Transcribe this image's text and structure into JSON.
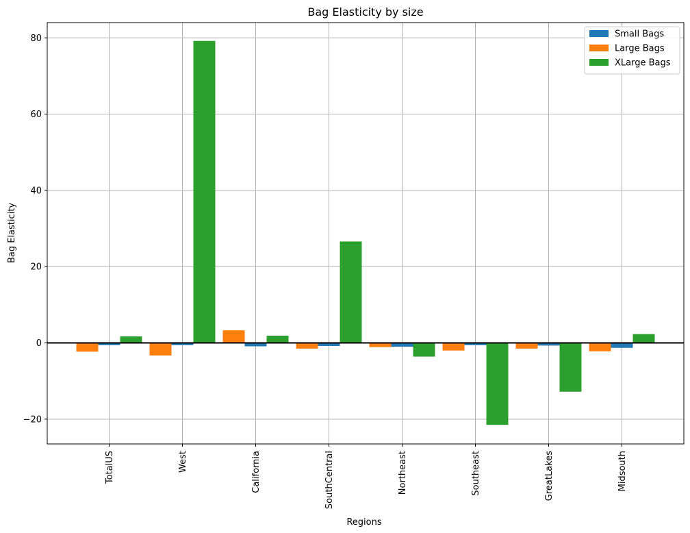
{
  "chart_data": {
    "type": "bar",
    "title": "Bag Elasticity by size",
    "xlabel": "Regions",
    "ylabel": "Bag Elasticity",
    "categories": [
      "TotalUS",
      "West",
      "California",
      "SouthCentral",
      "Northeast",
      "Southeast",
      "GreatLakes",
      "Midsouth"
    ],
    "series": [
      {
        "name": "Small Bags",
        "color": "#1f77b4",
        "values": [
          -0.6,
          -0.6,
          -0.9,
          -0.8,
          -1.0,
          -0.6,
          -0.7,
          -1.3
        ]
      },
      {
        "name": "Large Bags",
        "color": "#ff7f0e",
        "values": [
          -2.3,
          -3.3,
          3.3,
          -1.5,
          -1.1,
          -2.0,
          -1.5,
          -2.2
        ]
      },
      {
        "name": "XLarge Bags",
        "color": "#2ca02c",
        "values": [
          1.7,
          79.2,
          1.9,
          26.6,
          -3.6,
          -21.5,
          -12.8,
          2.3
        ]
      }
    ],
    "ylim": [
      -26.5,
      84
    ],
    "yticks": [
      -20,
      0,
      20,
      40,
      60,
      80
    ],
    "ytick_labels": [
      "−20",
      "0",
      "20",
      "40",
      "60",
      "80"
    ],
    "grid": true,
    "zero_line": true,
    "legend_position": "top-right"
  }
}
